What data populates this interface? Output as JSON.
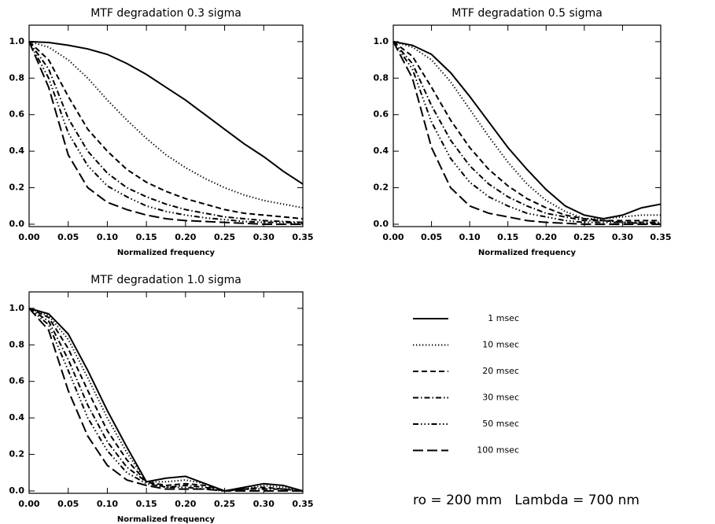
{
  "chart_data": [
    {
      "type": "line",
      "title": "MTF degradation 0.3 sigma",
      "x_label": "Normalized frequency",
      "x": [
        0,
        0.025,
        0.05,
        0.075,
        0.1,
        0.125,
        0.15,
        0.175,
        0.2,
        0.225,
        0.25,
        0.275,
        0.3,
        0.325,
        0.35
      ],
      "xlim": [
        0,
        0.35
      ],
      "ylim": [
        -0.013,
        1.09
      ],
      "xticks": [
        {
          "value": 0,
          "label": "0.00"
        },
        {
          "value": 0.05,
          "label": "0.05"
        },
        {
          "value": 0.1,
          "label": "0.10"
        },
        {
          "value": 0.15,
          "label": "0.15"
        },
        {
          "value": 0.2,
          "label": "0.20"
        },
        {
          "value": 0.25,
          "label": "0.25"
        },
        {
          "value": 0.3,
          "label": "0.30"
        },
        {
          "value": 0.35,
          "label": "0.35"
        }
      ],
      "yticks": [
        {
          "value": 0,
          "label": "0.0"
        },
        {
          "value": 0.2,
          "label": "0.2"
        },
        {
          "value": 0.4,
          "label": "0.4"
        },
        {
          "value": 0.6,
          "label": "0.6"
        },
        {
          "value": 0.8,
          "label": "0.8"
        },
        {
          "value": 1,
          "label": "1.0"
        }
      ],
      "series": [
        {
          "name": "1 msec",
          "color": "#000000",
          "dash": "solid",
          "values": [
            1.0,
            0.995,
            0.98,
            0.96,
            0.93,
            0.88,
            0.82,
            0.75,
            0.68,
            0.6,
            0.52,
            0.44,
            0.37,
            0.29,
            0.22
          ]
        },
        {
          "name": "10 msec",
          "color": "#000000",
          "dash": "dotted",
          "values": [
            1.0,
            0.97,
            0.9,
            0.8,
            0.68,
            0.57,
            0.47,
            0.38,
            0.31,
            0.25,
            0.2,
            0.16,
            0.13,
            0.11,
            0.09
          ]
        },
        {
          "name": "20 msec",
          "color": "#000000",
          "dash": "dashed",
          "values": [
            1.0,
            0.9,
            0.7,
            0.52,
            0.4,
            0.3,
            0.23,
            0.18,
            0.14,
            0.11,
            0.08,
            0.06,
            0.05,
            0.04,
            0.03
          ]
        },
        {
          "name": "30 msec",
          "color": "#000000",
          "dash": "dashdot",
          "values": [
            1.0,
            0.85,
            0.58,
            0.4,
            0.28,
            0.2,
            0.15,
            0.11,
            0.08,
            0.06,
            0.04,
            0.03,
            0.02,
            0.015,
            0.01
          ]
        },
        {
          "name": "50 msec",
          "color": "#000000",
          "dash": "dashdotdotdot",
          "values": [
            1.0,
            0.8,
            0.5,
            0.32,
            0.21,
            0.15,
            0.1,
            0.07,
            0.05,
            0.035,
            0.025,
            0.015,
            0.01,
            0.01,
            0.005
          ]
        },
        {
          "name": "100 msec",
          "color": "#000000",
          "dash": "longdash",
          "values": [
            1.0,
            0.75,
            0.38,
            0.2,
            0.12,
            0.08,
            0.05,
            0.03,
            0.02,
            0.015,
            0.01,
            0.005,
            0,
            0,
            0
          ]
        }
      ]
    },
    {
      "type": "line",
      "title": "MTF degradation 0.5 sigma",
      "x_label": "Normalized frequency",
      "x": [
        0,
        0.025,
        0.05,
        0.075,
        0.1,
        0.125,
        0.15,
        0.175,
        0.2,
        0.225,
        0.25,
        0.275,
        0.3,
        0.325,
        0.35
      ],
      "xlim": [
        0,
        0.35
      ],
      "ylim": [
        -0.013,
        1.09
      ],
      "xticks": [
        {
          "value": 0,
          "label": "0.00"
        },
        {
          "value": 0.05,
          "label": "0.05"
        },
        {
          "value": 0.1,
          "label": "0.10"
        },
        {
          "value": 0.15,
          "label": "0.15"
        },
        {
          "value": 0.2,
          "label": "0.20"
        },
        {
          "value": 0.25,
          "label": "0.25"
        },
        {
          "value": 0.3,
          "label": "0.30"
        },
        {
          "value": 0.35,
          "label": "0.35"
        }
      ],
      "yticks": [
        {
          "value": 0,
          "label": "0.0"
        },
        {
          "value": 0.2,
          "label": "0.2"
        },
        {
          "value": 0.4,
          "label": "0.4"
        },
        {
          "value": 0.6,
          "label": "0.6"
        },
        {
          "value": 0.8,
          "label": "0.8"
        },
        {
          "value": 1,
          "label": "1.0"
        }
      ],
      "series": [
        {
          "name": "1 msec",
          "color": "#000000",
          "dash": "solid",
          "values": [
            1.0,
            0.98,
            0.93,
            0.83,
            0.7,
            0.56,
            0.42,
            0.3,
            0.19,
            0.1,
            0.05,
            0.03,
            0.05,
            0.09,
            0.11
          ]
        },
        {
          "name": "10 msec",
          "color": "#000000",
          "dash": "dotted",
          "values": [
            1.0,
            0.97,
            0.9,
            0.78,
            0.63,
            0.48,
            0.34,
            0.22,
            0.13,
            0.07,
            0.03,
            0.03,
            0.04,
            0.05,
            0.05
          ]
        },
        {
          "name": "20 msec",
          "color": "#000000",
          "dash": "dashed",
          "values": [
            1.0,
            0.92,
            0.75,
            0.57,
            0.42,
            0.3,
            0.21,
            0.14,
            0.09,
            0.05,
            0.03,
            0.02,
            0.02,
            0.02,
            0.02
          ]
        },
        {
          "name": "30 msec",
          "color": "#000000",
          "dash": "dashdot",
          "values": [
            1.0,
            0.88,
            0.65,
            0.46,
            0.32,
            0.22,
            0.15,
            0.1,
            0.06,
            0.04,
            0.02,
            0.02,
            0.01,
            0.01,
            0.01
          ]
        },
        {
          "name": "50 msec",
          "color": "#000000",
          "dash": "dashdotdotdot",
          "values": [
            1.0,
            0.85,
            0.56,
            0.36,
            0.23,
            0.15,
            0.1,
            0.06,
            0.04,
            0.02,
            0.01,
            0.01,
            0.01,
            0.005,
            0.005
          ]
        },
        {
          "name": "100 msec",
          "color": "#000000",
          "dash": "longdash",
          "values": [
            1.0,
            0.8,
            0.42,
            0.2,
            0.1,
            0.06,
            0.04,
            0.02,
            0.01,
            0.005,
            0,
            0,
            0,
            0,
            0
          ]
        }
      ]
    },
    {
      "type": "line",
      "title": "MTF degradation 1.0 sigma",
      "x_label": "Normalized frequency",
      "x": [
        0,
        0.025,
        0.05,
        0.075,
        0.1,
        0.125,
        0.15,
        0.175,
        0.2,
        0.225,
        0.25,
        0.275,
        0.3,
        0.325,
        0.35
      ],
      "xlim": [
        0,
        0.35
      ],
      "ylim": [
        -0.013,
        1.09
      ],
      "xticks": [
        {
          "value": 0,
          "label": "0.00"
        },
        {
          "value": 0.05,
          "label": "0.05"
        },
        {
          "value": 0.1,
          "label": "0.10"
        },
        {
          "value": 0.15,
          "label": "0.15"
        },
        {
          "value": 0.2,
          "label": "0.20"
        },
        {
          "value": 0.25,
          "label": "0.25"
        },
        {
          "value": 0.3,
          "label": "0.30"
        },
        {
          "value": 0.35,
          "label": "0.35"
        }
      ],
      "yticks": [
        {
          "value": 0,
          "label": "0.0"
        },
        {
          "value": 0.2,
          "label": "0.2"
        },
        {
          "value": 0.4,
          "label": "0.4"
        },
        {
          "value": 0.6,
          "label": "0.6"
        },
        {
          "value": 0.8,
          "label": "0.8"
        },
        {
          "value": 1,
          "label": "1.0"
        }
      ],
      "legend": "outside right",
      "annotation": "ro = 200 mm   Lambda = 700 nm",
      "series": [
        {
          "name": "1 msec",
          "color": "#000000",
          "dash": "solid",
          "values": [
            1.0,
            0.97,
            0.86,
            0.66,
            0.44,
            0.24,
            0.05,
            0.07,
            0.08,
            0.04,
            0.0,
            0.02,
            0.04,
            0.03,
            0.0
          ]
        },
        {
          "name": "10 msec",
          "color": "#000000",
          "dash": "dotted",
          "values": [
            1.0,
            0.96,
            0.83,
            0.62,
            0.4,
            0.21,
            0.05,
            0.05,
            0.06,
            0.04,
            0.0,
            0.01,
            0.03,
            0.02,
            0.0
          ]
        },
        {
          "name": "20 msec",
          "color": "#000000",
          "dash": "dashed",
          "values": [
            1.0,
            0.95,
            0.78,
            0.55,
            0.33,
            0.17,
            0.05,
            0.03,
            0.04,
            0.03,
            0.0,
            0.01,
            0.02,
            0.01,
            0.0
          ]
        },
        {
          "name": "30 msec",
          "color": "#000000",
          "dash": "dashdot",
          "values": [
            1.0,
            0.93,
            0.72,
            0.47,
            0.27,
            0.13,
            0.05,
            0.02,
            0.03,
            0.02,
            0.0,
            0.01,
            0.01,
            0.01,
            0.0
          ]
        },
        {
          "name": "50 msec",
          "color": "#000000",
          "dash": "dashdotdotdot",
          "values": [
            1.0,
            0.91,
            0.66,
            0.4,
            0.22,
            0.1,
            0.04,
            0.02,
            0.02,
            0.01,
            0.0,
            0.01,
            0.01,
            0.01,
            0.0
          ]
        },
        {
          "name": "100 msec",
          "color": "#000000",
          "dash": "longdash",
          "values": [
            1.0,
            0.88,
            0.55,
            0.3,
            0.14,
            0.06,
            0.03,
            0.01,
            0.01,
            0.01,
            0.0,
            0,
            0,
            0,
            0
          ]
        }
      ]
    }
  ]
}
